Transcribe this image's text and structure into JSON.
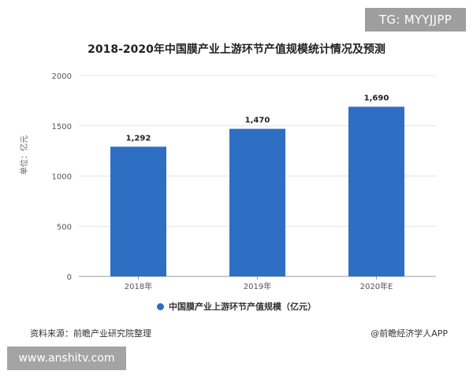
{
  "watermark_tag": "TG: MYYJJPP",
  "site_tag": "www.anshitv.com",
  "source_left": "资料来源：前瞻产业研究院整理",
  "source_right": "@前瞻经济学人APP",
  "chart_data": {
    "type": "bar",
    "title": "2018-2020年中国膜产业上游环节产值规模统计情况及预测",
    "ylabel": "单位：亿元",
    "categories": [
      "2018年",
      "2019年",
      "2020年E"
    ],
    "series": [
      {
        "name": "中国膜产业上游环节产值规模（亿元）",
        "values": [
          1292,
          1470,
          1690
        ],
        "labels": [
          "1,292",
          "1,470",
          "1,690"
        ]
      }
    ],
    "ylim": [
      0,
      2000
    ],
    "yticks": [
      0,
      500,
      1000,
      1500,
      2000
    ],
    "ytick_labels": [
      "0",
      "500",
      "1000",
      "1500",
      "2000"
    ],
    "bar_color": "#2e6fc4",
    "grid": true,
    "legend_position": "bottom"
  }
}
